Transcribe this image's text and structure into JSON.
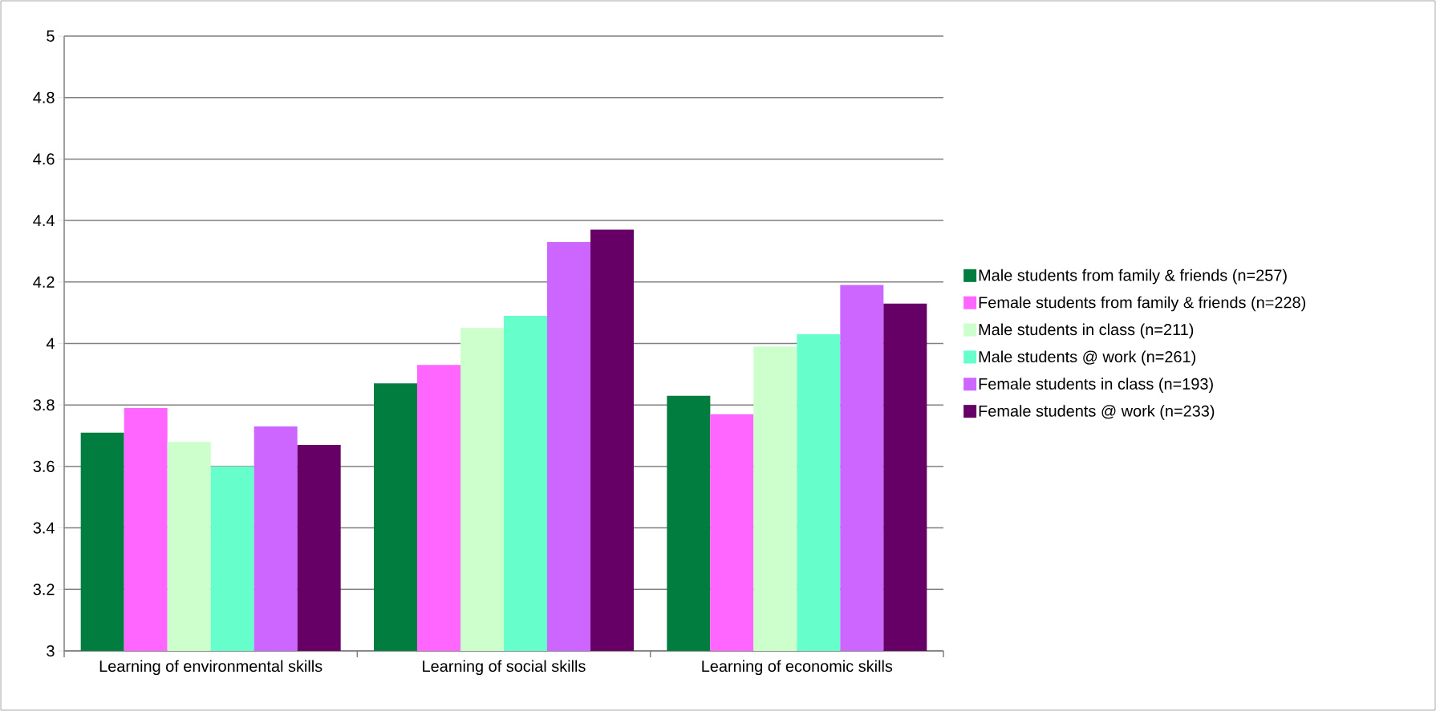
{
  "chart_data": {
    "type": "bar",
    "categories": [
      "Learning of environmental skills",
      "Learning of social skills",
      "Learning of economic skills"
    ],
    "series": [
      {
        "name": "Male students from family & friends (n=257)",
        "color": "#027d40",
        "values": [
          3.71,
          3.87,
          3.83
        ]
      },
      {
        "name": "Female students from family & friends (n=228)",
        "color": "#ff66ff",
        "values": [
          3.79,
          3.93,
          3.77
        ]
      },
      {
        "name": "Male students in class (n=211)",
        "color": "#ccffcc",
        "values": [
          3.68,
          4.05,
          3.99
        ]
      },
      {
        "name": "Male students @ work (n=261)",
        "color": "#66ffcc",
        "values": [
          3.6,
          4.09,
          4.03
        ]
      },
      {
        "name": "Female students in class (n=193)",
        "color": "#cc66ff",
        "values": [
          3.73,
          4.33,
          4.19
        ]
      },
      {
        "name": "Female students @ work (n=233)",
        "color": "#660066",
        "values": [
          3.67,
          4.37,
          4.13
        ]
      }
    ],
    "ylim": [
      3,
      5
    ],
    "yticks": [
      3,
      3.2,
      3.4,
      3.6,
      3.8,
      4,
      4.2,
      4.4,
      4.6,
      4.8,
      5
    ],
    "grid": "y",
    "legend": "right"
  }
}
